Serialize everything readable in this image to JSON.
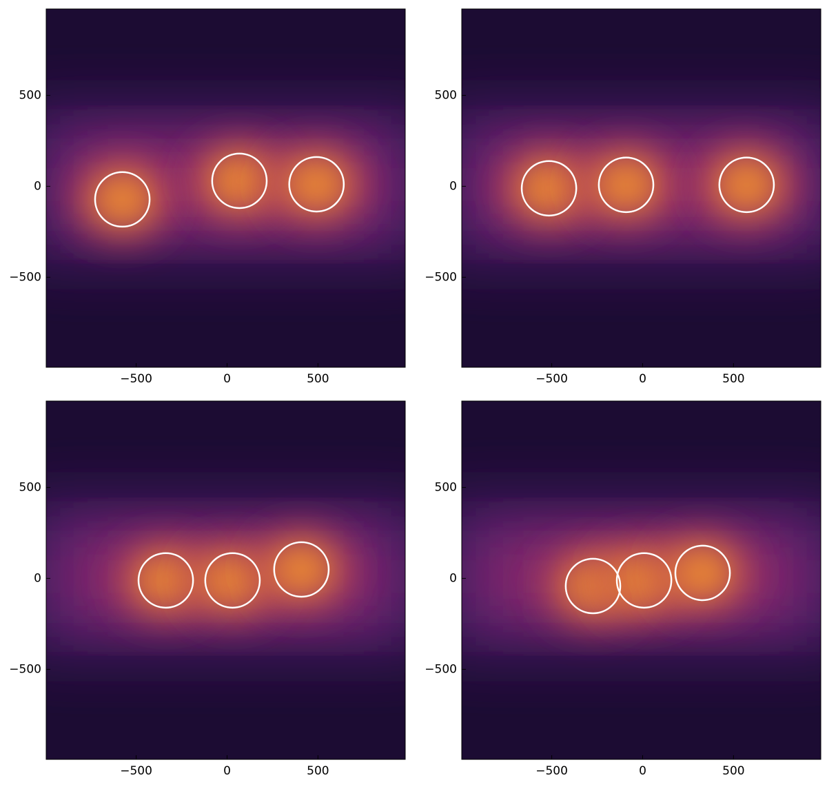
{
  "chart_data": [
    {
      "type": "heatmap",
      "xlim": [
        -995,
        980
      ],
      "ylim": [
        -995,
        975
      ],
      "xticks": [
        {
          "value": -500,
          "label": "−500"
        },
        0,
        500
      ],
      "yticks": [
        {
          "value": -500,
          "label": "−500"
        },
        0,
        500
      ],
      "circle_color": "#ffffff",
      "circles": {
        "x": [
          -576,
          68,
          492
        ],
        "y": [
          -72,
          30,
          11
        ],
        "r": [
          150,
          150,
          150
        ]
      }
    },
    {
      "type": "heatmap",
      "xlim": [
        -995,
        980
      ],
      "ylim": [
        -995,
        975
      ],
      "xticks": [
        {
          "value": -500,
          "label": "−500"
        },
        0,
        500
      ],
      "yticks": [
        {
          "value": -500,
          "label": "−500"
        },
        0,
        500
      ],
      "circle_color": "#ffffff",
      "circles": {
        "x": [
          -515,
          -91,
          572
        ],
        "y": [
          -11,
          8,
          8
        ],
        "r": [
          150,
          150,
          150
        ]
      }
    },
    {
      "type": "heatmap",
      "xlim": [
        -995,
        980
      ],
      "ylim": [
        -995,
        975
      ],
      "xticks": [
        {
          "value": -500,
          "label": "−500"
        },
        0,
        500
      ],
      "yticks": [
        {
          "value": -500,
          "label": "−500"
        },
        0,
        500
      ],
      "circle_color": "#ffffff",
      "circles": {
        "x": [
          -337,
          30,
          409
        ],
        "y": [
          -11,
          -11,
          49
        ],
        "r": [
          150,
          150,
          150
        ]
      }
    },
    {
      "type": "heatmap",
      "xlim": [
        -995,
        980
      ],
      "ylim": [
        -995,
        975
      ],
      "xticks": [
        {
          "value": -500,
          "label": "−500"
        },
        0,
        500
      ],
      "yticks": [
        {
          "value": -500,
          "label": "−500"
        },
        0,
        500
      ],
      "circle_color": "#ffffff",
      "circles": {
        "x": [
          -273,
          8,
          330
        ],
        "y": [
          -42,
          -11,
          30
        ],
        "r": [
          150,
          150,
          150
        ]
      }
    }
  ]
}
